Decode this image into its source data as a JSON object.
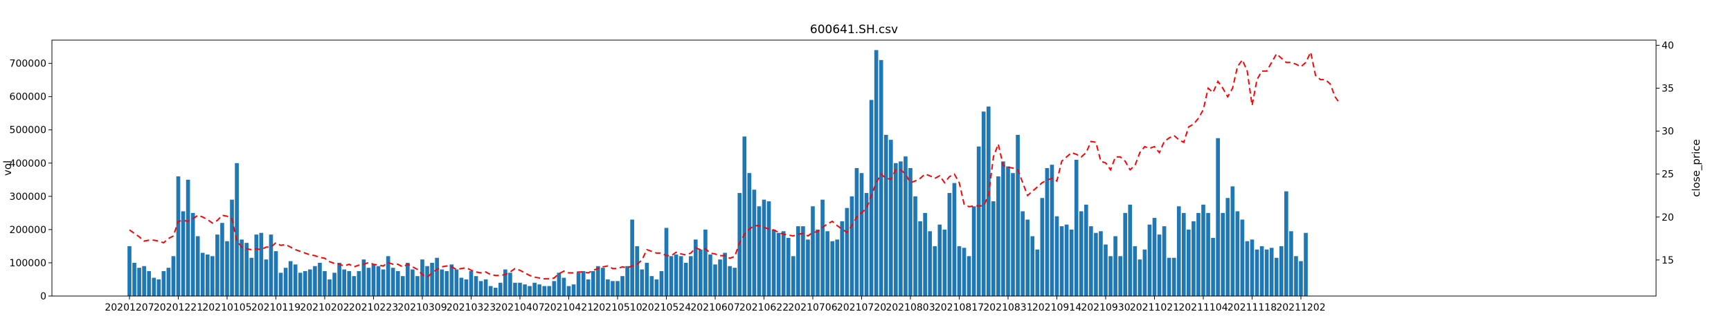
{
  "chart_data": {
    "type": "bar",
    "title": "600641.SH.csv",
    "xlabel": "",
    "ylabel": "vol",
    "y2label": "close_price",
    "ylim": [
      0,
      770000
    ],
    "y2lim": [
      10.8,
      40.6
    ],
    "yticks": [
      0,
      100000,
      200000,
      300000,
      400000,
      500000,
      600000,
      700000
    ],
    "y2ticks": [
      15,
      20,
      25,
      30,
      35,
      40
    ],
    "grid": false,
    "legend": "none",
    "colors": {
      "bars": "#1f77b4",
      "line": "#ff0000"
    },
    "x_ticks": [
      {
        "index": 0,
        "label": "20201207"
      },
      {
        "index": 10,
        "label": "20201221"
      },
      {
        "index": 20,
        "label": "20210105"
      },
      {
        "index": 30,
        "label": "20210119"
      },
      {
        "index": 40,
        "label": "20210202"
      },
      {
        "index": 50,
        "label": "20210223"
      },
      {
        "index": 60,
        "label": "20210309"
      },
      {
        "index": 70,
        "label": "20210323"
      },
      {
        "index": 80,
        "label": "20210407"
      },
      {
        "index": 90,
        "label": "20210421"
      },
      {
        "index": 100,
        "label": "20210510"
      },
      {
        "index": 110,
        "label": "20210524"
      },
      {
        "index": 120,
        "label": "20210607"
      },
      {
        "index": 130,
        "label": "20210622"
      },
      {
        "index": 140,
        "label": "20210706"
      },
      {
        "index": 150,
        "label": "20210720"
      },
      {
        "index": 160,
        "label": "20210803"
      },
      {
        "index": 170,
        "label": "20210817"
      },
      {
        "index": 180,
        "label": "20210831"
      },
      {
        "index": 190,
        "label": "20210914"
      },
      {
        "index": 200,
        "label": "20210930"
      },
      {
        "index": 210,
        "label": "20211021"
      },
      {
        "index": 220,
        "label": "20211104"
      },
      {
        "index": 230,
        "label": "20211118"
      },
      {
        "index": 240,
        "label": "20211202"
      }
    ],
    "series": [
      {
        "axis": "left",
        "kind": "bar",
        "values": [
          150000,
          100000,
          85000,
          90000,
          75000,
          55000,
          50000,
          75000,
          85000,
          120000,
          360000,
          255000,
          350000,
          250000,
          180000,
          130000,
          125000,
          120000,
          185000,
          220000,
          165000,
          290000,
          400000,
          170000,
          160000,
          115000,
          185000,
          190000,
          110000,
          185000,
          135000,
          70000,
          85000,
          105000,
          95000,
          70000,
          75000,
          80000,
          90000,
          100000,
          75000,
          50000,
          70000,
          100000,
          80000,
          75000,
          60000,
          75000,
          110000,
          85000,
          95000,
          90000,
          80000,
          120000,
          85000,
          75000,
          60000,
          100000,
          80000,
          60000,
          110000,
          90000,
          100000,
          115000,
          80000,
          75000,
          95000,
          80000,
          55000,
          50000,
          75000,
          60000,
          45000,
          50000,
          30000,
          25000,
          40000,
          80000,
          70000,
          40000,
          40000,
          35000,
          30000,
          40000,
          35000,
          30000,
          30000,
          45000,
          70000,
          55000,
          30000,
          35000,
          70000,
          75000,
          50000,
          75000,
          90000,
          85000,
          50000,
          45000,
          45000,
          60000,
          90000,
          230000,
          150000,
          80000,
          100000,
          60000,
          50000,
          75000,
          205000,
          120000,
          125000,
          120000,
          100000,
          120000,
          170000,
          140000,
          200000,
          125000,
          95000,
          110000,
          130000,
          90000,
          85000,
          310000,
          480000,
          370000,
          320000,
          270000,
          290000,
          285000,
          200000,
          190000,
          195000,
          175000,
          120000,
          210000,
          210000,
          170000,
          270000,
          200000,
          290000,
          195000,
          165000,
          170000,
          225000,
          265000,
          300000,
          385000,
          370000,
          310000,
          590000,
          740000,
          710000,
          485000,
          470000,
          400000,
          405000,
          420000,
          385000,
          300000,
          225000,
          250000,
          195000,
          150000,
          215000,
          200000,
          310000,
          340000,
          150000,
          145000,
          120000,
          270000,
          450000,
          555000,
          570000,
          285000,
          360000,
          405000,
          390000,
          370000,
          485000,
          255000,
          230000,
          180000,
          140000,
          295000,
          385000,
          395000,
          240000,
          210000,
          215000,
          200000,
          410000,
          255000,
          275000,
          210000,
          190000,
          195000,
          155000,
          120000,
          180000,
          120000,
          250000,
          275000,
          150000,
          110000,
          140000,
          215000,
          235000,
          185000,
          210000,
          115000,
          115000,
          270000,
          250000,
          200000,
          225000,
          250000,
          275000,
          250000,
          175000,
          475000,
          250000,
          295000,
          330000,
          255000,
          230000,
          165000,
          170000,
          140000,
          150000,
          140000,
          145000,
          115000,
          150000,
          315000,
          195000,
          120000,
          105000,
          190000
        ]
      },
      {
        "axis": "right",
        "kind": "line",
        "values": [
          18.5,
          18.1,
          17.7,
          17.2,
          17.3,
          17.3,
          17.2,
          17.0,
          17.5,
          17.8,
          19.5,
          19.6,
          19.5,
          19.8,
          20.2,
          20.0,
          19.7,
          19.3,
          19.6,
          20.2,
          20.1,
          19.8,
          17.2,
          16.5,
          16.3,
          16.2,
          16.3,
          16.2,
          16.5,
          16.5,
          17.0,
          16.7,
          16.8,
          16.5,
          16.2,
          16.0,
          15.8,
          15.6,
          15.5,
          15.3,
          15.2,
          14.8,
          14.6,
          14.5,
          14.3,
          14.5,
          14.2,
          14.4,
          14.5,
          14.7,
          14.5,
          14.4,
          14.3,
          14.7,
          14.5,
          14.5,
          14.2,
          14.5,
          14.2,
          13.9,
          13.3,
          13.0,
          13.5,
          13.9,
          14.2,
          14.3,
          14.2,
          13.9,
          14.0,
          14.1,
          13.8,
          13.6,
          13.5,
          13.6,
          13.3,
          13.2,
          13.2,
          13.3,
          13.6,
          14.0,
          13.8,
          13.5,
          13.2,
          13.0,
          12.9,
          12.8,
          12.8,
          12.9,
          13.4,
          13.7,
          13.5,
          13.5,
          13.6,
          13.6,
          13.5,
          13.8,
          14.0,
          14.2,
          14.3,
          14.0,
          14.0,
          14.2,
          14.1,
          14.3,
          14.5,
          15.0,
          16.2,
          16.0,
          15.8,
          15.8,
          15.5,
          15.5,
          15.9,
          15.7,
          15.6,
          15.8,
          16.4,
          16.2,
          16.3,
          15.8,
          15.7,
          15.5,
          15.5,
          15.2,
          15.4,
          17.0,
          18.0,
          18.6,
          19.0,
          19.0,
          18.8,
          18.6,
          18.5,
          18.2,
          18.0,
          17.9,
          17.8,
          18.0,
          18.1,
          17.8,
          18.2,
          18.3,
          18.8,
          19.2,
          19.5,
          19.0,
          18.6,
          18.2,
          19.0,
          20.0,
          20.5,
          21.0,
          22.5,
          24.0,
          25.0,
          24.5,
          24.4,
          25.5,
          25.5,
          25.0,
          24.0,
          24.2,
          24.5,
          25.0,
          24.8,
          24.5,
          24.8,
          24.0,
          24.7,
          25.0,
          24.0,
          21.5,
          21.2,
          21.3,
          21.3,
          21.3,
          22.5,
          27.0,
          28.5,
          26.0,
          25.8,
          25.7,
          25.5,
          24.0,
          22.5,
          23.0,
          23.5,
          24.0,
          24.3,
          24.5,
          24.2,
          26.5,
          27.0,
          27.5,
          27.3,
          27.0,
          27.5,
          28.8,
          28.7,
          26.5,
          26.3,
          25.5,
          27.0,
          27.0,
          26.5,
          25.5,
          26.0,
          27.5,
          28.2,
          28.0,
          28.2,
          27.5,
          28.8,
          29.2,
          29.5,
          29.0,
          28.7,
          30.5,
          30.8,
          31.5,
          32.5,
          35.0,
          34.5,
          35.8,
          35.0,
          34.0,
          35.0,
          37.5,
          38.3,
          37.0,
          33.0,
          36.0,
          37.0,
          37.0,
          38.0,
          39.0,
          38.5,
          38.0,
          38.0,
          37.8,
          37.5,
          38.0,
          39.2,
          36.5,
          36.0,
          36.0,
          35.5,
          34.0,
          33.2
        ]
      }
    ]
  }
}
